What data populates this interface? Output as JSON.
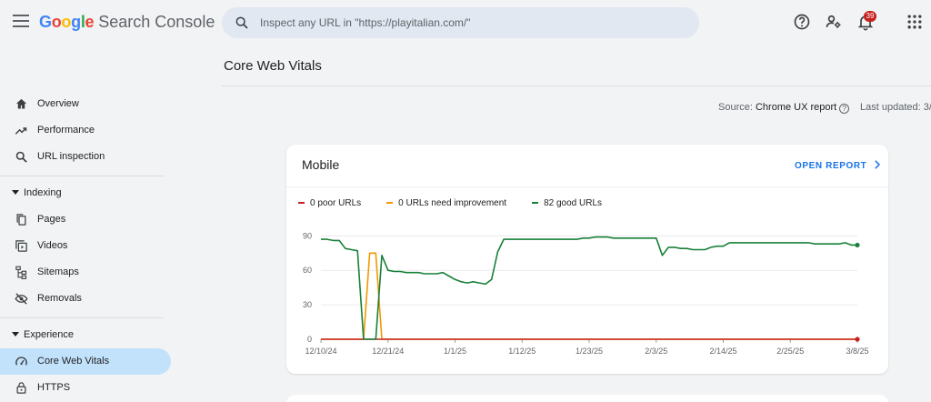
{
  "app": {
    "logo_google": "Google",
    "logo_product": "Search Console"
  },
  "search": {
    "placeholder": "Inspect any URL in \"https://playitalian.com/\""
  },
  "header": {
    "notifications_count": "39"
  },
  "sidebar": {
    "items_top": [
      {
        "label": "Overview",
        "icon": "home-icon"
      },
      {
        "label": "Performance",
        "icon": "trending-up-icon"
      },
      {
        "label": "URL inspection",
        "icon": "search-icon"
      }
    ],
    "indexing": {
      "label": "Indexing",
      "items": [
        {
          "label": "Pages",
          "icon": "pages-icon"
        },
        {
          "label": "Videos",
          "icon": "video-icon"
        },
        {
          "label": "Sitemaps",
          "icon": "sitemap-icon"
        },
        {
          "label": "Removals",
          "icon": "visibility-off-icon"
        }
      ]
    },
    "experience": {
      "label": "Experience",
      "items": [
        {
          "label": "Core Web Vitals",
          "icon": "speed-icon",
          "active": true
        },
        {
          "label": "HTTPS",
          "icon": "lock-icon"
        }
      ]
    }
  },
  "main": {
    "page_title": "Core Web Vitals",
    "source_label": "Source:",
    "source_value": "Chrome UX report",
    "last_updated_label": "Last updated: 3/"
  },
  "card": {
    "title": "Mobile",
    "open_report": "OPEN REPORT",
    "legend": [
      {
        "label": "0 poor URLs",
        "color": "#c5221f"
      },
      {
        "label": "0 URLs need improvement",
        "color": "#f29900"
      },
      {
        "label": "82 good URLs",
        "color": "#188038"
      }
    ]
  },
  "chart_data": {
    "type": "line",
    "x": [
      "12/10/24",
      "12/11/24",
      "12/12/24",
      "12/13/24",
      "12/14/24",
      "12/15/24",
      "12/16/24",
      "12/17/24",
      "12/18/24",
      "12/19/24",
      "12/20/24",
      "12/21/24",
      "12/22/24",
      "12/23/24",
      "12/24/24",
      "12/25/24",
      "12/26/24",
      "12/27/24",
      "12/28/24",
      "12/29/24",
      "12/30/24",
      "12/31/24",
      "1/1/25",
      "1/2/25",
      "1/3/25",
      "1/4/25",
      "1/5/25",
      "1/6/25",
      "1/7/25",
      "1/8/25",
      "1/9/25",
      "1/10/25",
      "1/11/25",
      "1/12/25",
      "1/13/25",
      "1/14/25",
      "1/15/25",
      "1/16/25",
      "1/17/25",
      "1/18/25",
      "1/19/25",
      "1/20/25",
      "1/21/25",
      "1/22/25",
      "1/23/25",
      "1/24/25",
      "1/25/25",
      "1/26/25",
      "1/27/25",
      "1/28/25",
      "1/29/25",
      "1/30/25",
      "1/31/25",
      "2/1/25",
      "2/2/25",
      "2/3/25",
      "2/4/25",
      "2/5/25",
      "2/6/25",
      "2/7/25",
      "2/8/25",
      "2/9/25",
      "2/10/25",
      "2/11/25",
      "2/12/25",
      "2/13/25",
      "2/14/25",
      "2/15/25",
      "2/16/25",
      "2/17/25",
      "2/18/25",
      "2/19/25",
      "2/20/25",
      "2/21/25",
      "2/22/25",
      "2/23/25",
      "2/24/25",
      "2/25/25",
      "2/26/25",
      "2/27/25",
      "2/28/25",
      "3/1/25",
      "3/2/25",
      "3/3/25",
      "3/4/25",
      "3/5/25",
      "3/6/25",
      "3/7/25",
      "3/8/25"
    ],
    "series": [
      {
        "name": "0 poor URLs",
        "color": "#c5221f",
        "values": [
          0,
          0,
          0,
          0,
          0,
          0,
          0,
          0,
          0,
          0,
          0,
          0,
          0,
          0,
          0,
          0,
          0,
          0,
          0,
          0,
          0,
          0,
          0,
          0,
          0,
          0,
          0,
          0,
          0,
          0,
          0,
          0,
          0,
          0,
          0,
          0,
          0,
          0,
          0,
          0,
          0,
          0,
          0,
          0,
          0,
          0,
          0,
          0,
          0,
          0,
          0,
          0,
          0,
          0,
          0,
          0,
          0,
          0,
          0,
          0,
          0,
          0,
          0,
          0,
          0,
          0,
          0,
          0,
          0,
          0,
          0,
          0,
          0,
          0,
          0,
          0,
          0,
          0,
          0,
          0,
          0,
          0,
          0,
          0,
          0,
          0,
          0,
          0,
          0
        ]
      },
      {
        "name": "0 URLs need improvement",
        "color": "#f29900",
        "values": [
          0,
          0,
          0,
          0,
          0,
          0,
          0,
          0,
          75,
          75,
          0,
          0,
          0,
          0,
          0,
          0,
          0,
          0,
          0,
          0,
          0,
          0,
          0,
          0,
          0,
          0,
          0,
          0,
          0,
          0,
          0,
          0,
          0,
          0,
          0,
          0,
          0,
          0,
          0,
          0,
          0,
          0,
          0,
          0,
          0,
          0,
          0,
          0,
          0,
          0,
          0,
          0,
          0,
          0,
          0,
          0,
          0,
          0,
          0,
          0,
          0,
          0,
          0,
          0,
          0,
          0,
          0,
          0,
          0,
          0,
          0,
          0,
          0,
          0,
          0,
          0,
          0,
          0,
          0,
          0,
          0,
          0,
          0,
          0,
          0,
          0,
          0,
          0,
          0
        ]
      },
      {
        "name": "82 good URLs",
        "color": "#188038",
        "values": [
          87,
          87,
          86,
          86,
          79,
          78,
          77,
          0,
          0,
          0,
          73,
          60,
          59,
          59,
          58,
          58,
          58,
          57,
          57,
          57,
          58,
          55,
          52,
          50,
          49,
          50,
          49,
          48,
          52,
          76,
          87,
          87,
          87,
          87,
          87,
          87,
          87,
          87,
          87,
          87,
          87,
          87,
          87,
          88,
          88,
          89,
          89,
          89,
          88,
          88,
          88,
          88,
          88,
          88,
          88,
          88,
          73,
          80,
          80,
          79,
          79,
          78,
          78,
          78,
          80,
          81,
          81,
          84,
          84,
          84,
          84,
          84,
          84,
          84,
          84,
          84,
          84,
          84,
          84,
          84,
          84,
          83,
          83,
          83,
          83,
          83,
          84,
          82,
          82
        ]
      }
    ],
    "x_tick_labels": [
      "12/10/24",
      "12/21/24",
      "1/1/25",
      "1/12/25",
      "1/23/25",
      "2/3/25",
      "2/14/25",
      "2/25/25",
      "3/8/25"
    ],
    "y_tick_labels": [
      "0",
      "30",
      "60",
      "90"
    ],
    "ylim": [
      0,
      95
    ],
    "grid": true
  }
}
